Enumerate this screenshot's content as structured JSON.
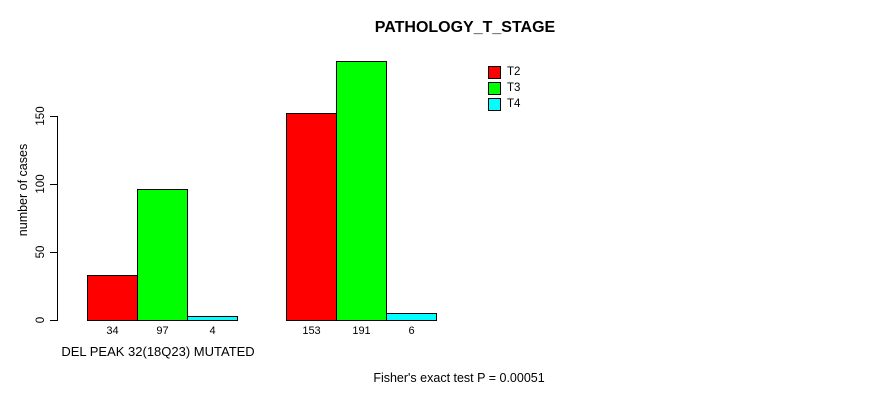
{
  "chart_data": {
    "type": "bar",
    "title": "PATHOLOGY_T_STAGE",
    "ylabel": "number of cases",
    "xlabel": "",
    "categories": [
      "DEL PEAK 32(18Q23) MUTATED",
      ""
    ],
    "series": [
      {
        "name": "T2",
        "color": "#FF0000",
        "values": [
          34,
          153
        ]
      },
      {
        "name": "T3",
        "color": "#00FF00",
        "values": [
          97,
          191
        ]
      },
      {
        "name": "T4",
        "color": "#00FFFF",
        "values": [
          4,
          6
        ]
      }
    ],
    "yticks": [
      0,
      50,
      100,
      150
    ],
    "yaxis_range": [
      0,
      150
    ],
    "ylim": [
      0,
      193
    ],
    "grid": false,
    "show_value_labels": true,
    "legend_position": "top-right",
    "annotation": "Fisher's exact test P = 0.00051"
  }
}
